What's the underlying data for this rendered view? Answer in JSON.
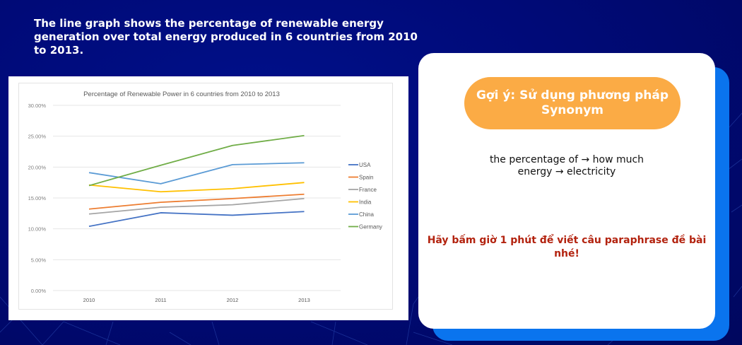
{
  "intro": {
    "text": "The line graph shows the percentage of renewable energy generation over total energy produced in 6 countries from 2010 to 2013."
  },
  "hint_card": {
    "pill_label": "Gợi ý: Sử dụng phương pháp Synonym",
    "synonym_lines": [
      "the percentage of → how much",
      "energy → electricity"
    ],
    "task": "Hãy bấm giờ 1 phút để viết câu paraphrase đề bài nhé!"
  },
  "colors": {
    "pill": "#fbab45",
    "task_text": "#b3230f",
    "shadow_card": "#0a74ee"
  },
  "chart_data": {
    "type": "line",
    "title": "Percentage of Renewable Power in 6 countries from 2010 to 2013",
    "xlabel": "",
    "ylabel": "",
    "categories": [
      "2010",
      "2011",
      "2012",
      "2013"
    ],
    "ylim": [
      0,
      30
    ],
    "yticks": [
      "0.00%",
      "5.00%",
      "10.00%",
      "15.00%",
      "20.00%",
      "25.00%",
      "30.00%"
    ],
    "ytick_values": [
      0,
      5,
      10,
      15,
      20,
      25,
      30
    ],
    "grid": true,
    "legend_position": "right",
    "series": [
      {
        "name": "USA",
        "color": "#4472c4",
        "values": [
          10.4,
          12.6,
          12.2,
          12.8
        ]
      },
      {
        "name": "Spain",
        "color": "#ed7d31",
        "values": [
          13.2,
          14.3,
          14.9,
          15.6
        ]
      },
      {
        "name": "France",
        "color": "#a5a5a5",
        "values": [
          12.4,
          13.5,
          13.9,
          14.9
        ]
      },
      {
        "name": "India",
        "color": "#ffc000",
        "values": [
          17.1,
          16.0,
          16.5,
          17.5
        ]
      },
      {
        "name": "China",
        "color": "#5b9bd5",
        "values": [
          19.1,
          17.3,
          20.4,
          20.7
        ]
      },
      {
        "name": "Germany",
        "color": "#70ad47",
        "values": [
          17.0,
          20.3,
          23.5,
          25.1
        ]
      }
    ]
  }
}
